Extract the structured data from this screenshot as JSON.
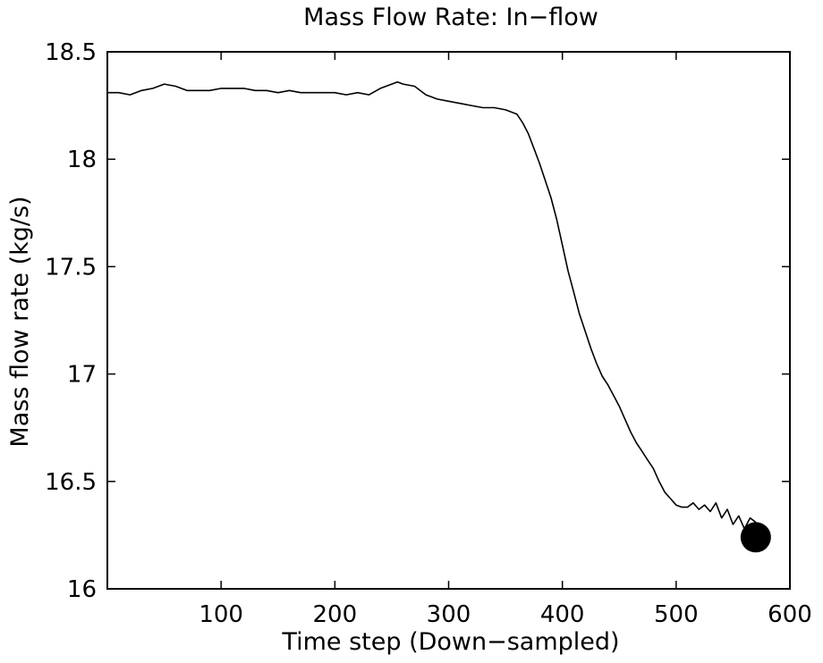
{
  "chart_data": {
    "type": "line",
    "title": "Mass Flow Rate: In−flow",
    "xlabel": "Time step (Down−sampled)",
    "ylabel": "Mass flow rate (kg/s)",
    "xlim": [
      0,
      600
    ],
    "ylim": [
      16,
      18.5
    ],
    "xticks": [
      100,
      200,
      300,
      400,
      500,
      600
    ],
    "xtick_labels": [
      "100",
      "200",
      "300",
      "400",
      "500",
      "600"
    ],
    "yticks": [
      16,
      16.5,
      17,
      17.5,
      18,
      18.5
    ],
    "ytick_labels": [
      "16",
      "16.5",
      "17",
      "17.5",
      "18",
      "18.5"
    ],
    "grid": false,
    "line_color": "#000000",
    "series": [
      {
        "x": [
          0,
          10,
          20,
          30,
          40,
          50,
          60,
          70,
          80,
          90,
          100,
          110,
          120,
          130,
          140,
          150,
          160,
          170,
          180,
          190,
          200,
          210,
          220,
          230,
          240,
          250,
          255,
          260,
          270,
          280,
          290,
          300,
          310,
          320,
          330,
          340,
          350,
          360,
          365,
          370,
          375,
          380,
          385,
          390,
          395,
          400,
          405,
          410,
          415,
          420,
          425,
          430,
          435,
          440,
          445,
          450,
          455,
          460,
          465,
          470,
          475,
          480,
          485,
          490,
          495,
          500,
          505,
          510,
          515,
          520,
          525,
          530,
          535,
          540,
          545,
          550,
          555,
          560,
          565,
          570
        ],
        "y": [
          18.31,
          18.31,
          18.3,
          18.32,
          18.33,
          18.35,
          18.34,
          18.32,
          18.32,
          18.32,
          18.33,
          18.33,
          18.33,
          18.32,
          18.32,
          18.31,
          18.32,
          18.31,
          18.31,
          18.31,
          18.31,
          18.3,
          18.31,
          18.3,
          18.33,
          18.35,
          18.36,
          18.35,
          18.34,
          18.3,
          18.28,
          18.27,
          18.26,
          18.25,
          18.24,
          18.24,
          18.23,
          18.21,
          18.17,
          18.12,
          18.05,
          17.98,
          17.9,
          17.82,
          17.72,
          17.6,
          17.48,
          17.38,
          17.28,
          17.2,
          17.12,
          17.05,
          16.99,
          16.95,
          16.9,
          16.85,
          16.79,
          16.73,
          16.68,
          16.64,
          16.6,
          16.56,
          16.5,
          16.45,
          16.42,
          16.39,
          16.38,
          16.38,
          16.4,
          16.37,
          16.39,
          16.36,
          16.4,
          16.33,
          16.37,
          16.3,
          16.34,
          16.28,
          16.33,
          16.31
        ]
      }
    ],
    "annotations": [
      {
        "type": "marker",
        "shape": "filled-circle",
        "x": 570,
        "y": 16.24,
        "color": "#000000"
      }
    ]
  }
}
